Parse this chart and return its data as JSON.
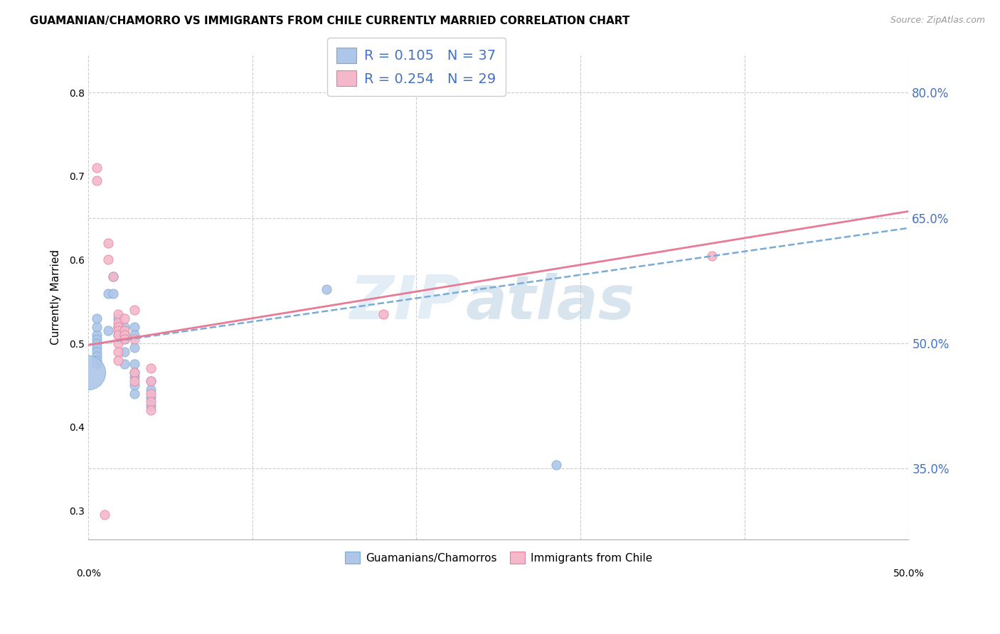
{
  "title": "GUAMANIAN/CHAMORRO VS IMMIGRANTS FROM CHILE CURRENTLY MARRIED CORRELATION CHART",
  "source": "Source: ZipAtlas.com",
  "ylabel": "Currently Married",
  "ylabel_right_labels": [
    35.0,
    50.0,
    65.0,
    80.0
  ],
  "xmin": 0.0,
  "xmax": 0.5,
  "ymin": 0.265,
  "ymax": 0.845,
  "legend_blue_R": "0.105",
  "legend_blue_N": "37",
  "legend_pink_R": "0.254",
  "legend_pink_N": "29",
  "legend_label_blue": "Guamanians/Chamorros",
  "legend_label_pink": "Immigrants from Chile",
  "blue_color": "#aec6e8",
  "pink_color": "#f5b8cb",
  "blue_edge_color": "#7aabd4",
  "pink_edge_color": "#e0809a",
  "blue_line_color": "#7aabd4",
  "pink_line_color": "#e87a96",
  "blue_scatter": [
    [
      0.005,
      0.51
    ],
    [
      0.005,
      0.505
    ],
    [
      0.005,
      0.5
    ],
    [
      0.005,
      0.495
    ],
    [
      0.005,
      0.49
    ],
    [
      0.005,
      0.485
    ],
    [
      0.005,
      0.48
    ],
    [
      0.005,
      0.475
    ],
    [
      0.005,
      0.52
    ],
    [
      0.005,
      0.53
    ],
    [
      0.012,
      0.56
    ],
    [
      0.012,
      0.515
    ],
    [
      0.015,
      0.58
    ],
    [
      0.015,
      0.56
    ],
    [
      0.018,
      0.53
    ],
    [
      0.018,
      0.52
    ],
    [
      0.018,
      0.51
    ],
    [
      0.022,
      0.52
    ],
    [
      0.022,
      0.51
    ],
    [
      0.022,
      0.505
    ],
    [
      0.022,
      0.49
    ],
    [
      0.022,
      0.475
    ],
    [
      0.028,
      0.52
    ],
    [
      0.028,
      0.51
    ],
    [
      0.028,
      0.495
    ],
    [
      0.028,
      0.46
    ],
    [
      0.028,
      0.45
    ],
    [
      0.028,
      0.44
    ],
    [
      0.028,
      0.475
    ],
    [
      0.028,
      0.465
    ],
    [
      0.038,
      0.455
    ],
    [
      0.038,
      0.445
    ],
    [
      0.038,
      0.435
    ],
    [
      0.038,
      0.425
    ],
    [
      0.0,
      0.465
    ],
    [
      0.285,
      0.355
    ],
    [
      0.145,
      0.565
    ]
  ],
  "blue_large_idx": [
    34
  ],
  "blue_size_large": 1200,
  "blue_size_default": 90,
  "pink_scatter": [
    [
      0.005,
      0.71
    ],
    [
      0.005,
      0.695
    ],
    [
      0.012,
      0.62
    ],
    [
      0.012,
      0.6
    ],
    [
      0.015,
      0.58
    ],
    [
      0.018,
      0.535
    ],
    [
      0.018,
      0.525
    ],
    [
      0.018,
      0.52
    ],
    [
      0.018,
      0.515
    ],
    [
      0.018,
      0.51
    ],
    [
      0.018,
      0.5
    ],
    [
      0.018,
      0.49
    ],
    [
      0.018,
      0.48
    ],
    [
      0.022,
      0.53
    ],
    [
      0.022,
      0.515
    ],
    [
      0.022,
      0.51
    ],
    [
      0.022,
      0.505
    ],
    [
      0.028,
      0.54
    ],
    [
      0.028,
      0.505
    ],
    [
      0.028,
      0.465
    ],
    [
      0.028,
      0.455
    ],
    [
      0.038,
      0.47
    ],
    [
      0.038,
      0.455
    ],
    [
      0.038,
      0.44
    ],
    [
      0.038,
      0.43
    ],
    [
      0.038,
      0.42
    ],
    [
      0.01,
      0.295
    ],
    [
      0.38,
      0.605
    ],
    [
      0.18,
      0.535
    ]
  ],
  "pink_size_default": 90,
  "watermark_zip": "ZIP",
  "watermark_atlas": "atlas",
  "trendline_ystart_blue": 0.498,
  "trendline_yend_blue": 0.638,
  "trendline_ystart_pink": 0.498,
  "trendline_yend_pink": 0.658,
  "grid_color": "#cccccc",
  "xtick_color": "#666666"
}
